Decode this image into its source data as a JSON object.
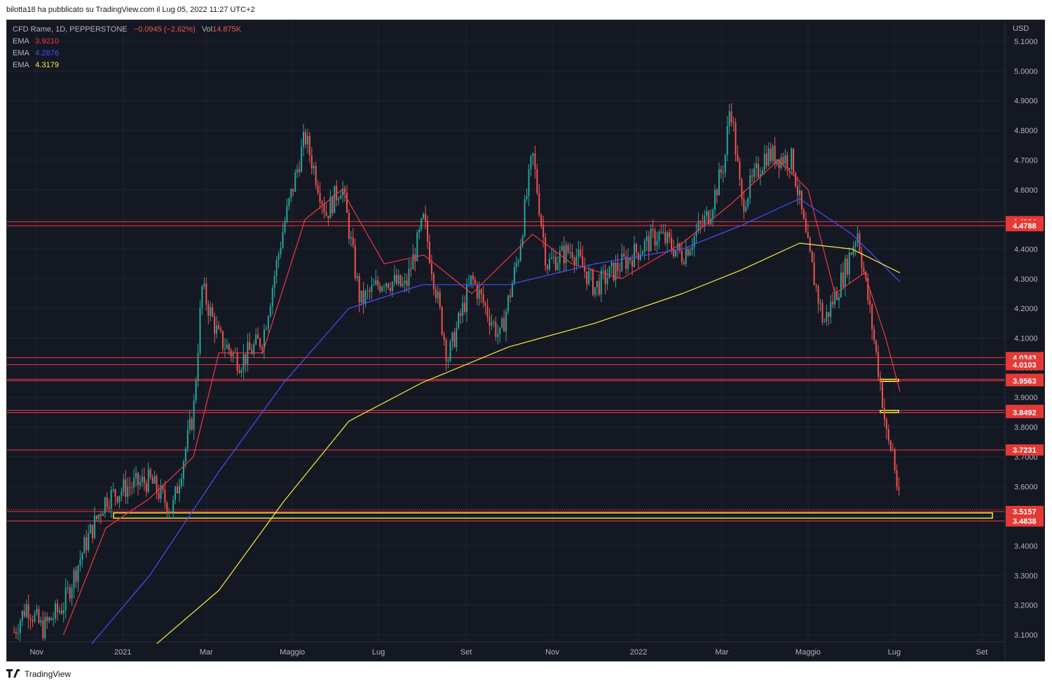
{
  "header": {
    "publish_line": "bilotta18 ha pubblicato su TradingView.com il Lug 05, 2022 11:27 UTC+2"
  },
  "legend": {
    "symbol": "CFD Rame, 1D, PEPPERSTONE",
    "change": "−0.0945 (−2.62%)",
    "vol_label": "Vol",
    "vol_value": "14.875K",
    "ema_rows": [
      {
        "label": "EMA",
        "value": "3.9210",
        "color": "#f23645"
      },
      {
        "label": "EMA",
        "value": "4.2876",
        "color": "#4a4fff"
      },
      {
        "label": "EMA",
        "value": "4.3179",
        "color": "#ffeb3b"
      }
    ]
  },
  "footer": {
    "brand": "TradingView",
    "logo_icon": "tradingview-logo-icon"
  },
  "colors": {
    "background": "#141823",
    "up": "#26a69a",
    "down": "#ef5350",
    "level_line": "#f23645",
    "zone": "#ffeb3b",
    "axis_text": "#b2b5be"
  },
  "chart_data": {
    "type": "candlestick",
    "title": "CFD Rame, 1D, PEPPERSTONE",
    "currency": "USD",
    "x_axis_labels": [
      "Nov",
      "2021",
      "Mar",
      "Maggio",
      "Lug",
      "Set",
      "Nov",
      "2022",
      "Mar",
      "Maggio",
      "Lug",
      "Set"
    ],
    "y_axis_ticks": [
      "5.1000",
      "5.0000",
      "4.9000",
      "4.8000",
      "4.7000",
      "4.6000",
      "4.5000",
      "4.4000",
      "4.3000",
      "4.2000",
      "4.1000",
      "4.0000",
      "3.9000",
      "3.8000",
      "3.7000",
      "3.6000",
      "3.5000",
      "3.4000",
      "3.3000",
      "3.2000",
      "3.1000"
    ],
    "ylim": [
      3.07,
      5.12
    ],
    "grid": true,
    "price_levels": [
      "4.4924",
      "4.4788",
      "4.0343",
      "4.0103",
      "3.9611",
      "3.9563",
      "3.8564",
      "3.8492",
      "3.7231",
      "3.5157",
      "3.4838"
    ],
    "last_price": 3.5157,
    "support_zone": [
      3.4838,
      3.5157
    ],
    "price_path": [
      {
        "t": "2020-10-15",
        "p": 3.1
      },
      {
        "t": "2020-10-25",
        "p": 3.2
      },
      {
        "t": "2020-11-05",
        "p": 3.12
      },
      {
        "t": "2020-11-20",
        "p": 3.2
      },
      {
        "t": "2020-12-05",
        "p": 3.4
      },
      {
        "t": "2020-12-20",
        "p": 3.56
      },
      {
        "t": "2021-01-05",
        "p": 3.6
      },
      {
        "t": "2021-01-20",
        "p": 3.62
      },
      {
        "t": "2021-02-05",
        "p": 3.52
      },
      {
        "t": "2021-02-20",
        "p": 3.85
      },
      {
        "t": "2021-02-26",
        "p": 4.27
      },
      {
        "t": "2021-03-10",
        "p": 4.1
      },
      {
        "t": "2021-03-25",
        "p": 4.02
      },
      {
        "t": "2021-04-10",
        "p": 4.1
      },
      {
        "t": "2021-04-25",
        "p": 4.48
      },
      {
        "t": "2021-05-10",
        "p": 4.78
      },
      {
        "t": "2021-05-25",
        "p": 4.52
      },
      {
        "t": "2021-06-05",
        "p": 4.62
      },
      {
        "t": "2021-06-18",
        "p": 4.22
      },
      {
        "t": "2021-07-05",
        "p": 4.3
      },
      {
        "t": "2021-07-20",
        "p": 4.27
      },
      {
        "t": "2021-08-02",
        "p": 4.5
      },
      {
        "t": "2021-08-19",
        "p": 4.03
      },
      {
        "t": "2021-09-05",
        "p": 4.3
      },
      {
        "t": "2021-09-25",
        "p": 4.1
      },
      {
        "t": "2021-10-08",
        "p": 4.38
      },
      {
        "t": "2021-10-18",
        "p": 4.72
      },
      {
        "t": "2021-10-28",
        "p": 4.35
      },
      {
        "t": "2021-11-15",
        "p": 4.4
      },
      {
        "t": "2021-12-01",
        "p": 4.27
      },
      {
        "t": "2021-12-20",
        "p": 4.35
      },
      {
        "t": "2022-01-15",
        "p": 4.45
      },
      {
        "t": "2022-02-01",
        "p": 4.38
      },
      {
        "t": "2022-02-20",
        "p": 4.52
      },
      {
        "t": "2022-03-03",
        "p": 4.7
      },
      {
        "t": "2022-03-07",
        "p": 4.9
      },
      {
        "t": "2022-03-15",
        "p": 4.55
      },
      {
        "t": "2022-04-01",
        "p": 4.72
      },
      {
        "t": "2022-04-20",
        "p": 4.7
      },
      {
        "t": "2022-04-30",
        "p": 4.42
      },
      {
        "t": "2022-05-12",
        "p": 4.15
      },
      {
        "t": "2022-05-25",
        "p": 4.3
      },
      {
        "t": "2022-06-05",
        "p": 4.46
      },
      {
        "t": "2022-06-15",
        "p": 4.15
      },
      {
        "t": "2022-06-22",
        "p": 3.92
      },
      {
        "t": "2022-06-26",
        "p": 3.75
      },
      {
        "t": "2022-06-30",
        "p": 3.72
      },
      {
        "t": "2022-07-05",
        "p": 3.52
      }
    ],
    "ema_fast": [
      {
        "t": "2020-11-20",
        "p": 3.1
      },
      {
        "t": "2020-12-20",
        "p": 3.46
      },
      {
        "t": "2021-01-20",
        "p": 3.56
      },
      {
        "t": "2021-02-20",
        "p": 3.7
      },
      {
        "t": "2021-03-10",
        "p": 4.05
      },
      {
        "t": "2021-04-10",
        "p": 4.05
      },
      {
        "t": "2021-05-10",
        "p": 4.5
      },
      {
        "t": "2021-06-05",
        "p": 4.6
      },
      {
        "t": "2021-07-05",
        "p": 4.35
      },
      {
        "t": "2021-08-02",
        "p": 4.38
      },
      {
        "t": "2021-09-05",
        "p": 4.25
      },
      {
        "t": "2021-10-18",
        "p": 4.45
      },
      {
        "t": "2021-11-15",
        "p": 4.35
      },
      {
        "t": "2021-12-20",
        "p": 4.3
      },
      {
        "t": "2022-02-01",
        "p": 4.42
      },
      {
        "t": "2022-03-07",
        "p": 4.55
      },
      {
        "t": "2022-04-10",
        "p": 4.7
      },
      {
        "t": "2022-05-01",
        "p": 4.6
      },
      {
        "t": "2022-05-20",
        "p": 4.25
      },
      {
        "t": "2022-06-10",
        "p": 4.32
      },
      {
        "t": "2022-06-25",
        "p": 4.1
      },
      {
        "t": "2022-07-05",
        "p": 3.92
      }
    ],
    "ema_mid": [
      {
        "t": "2020-12-10",
        "p": 3.07
      },
      {
        "t": "2021-01-20",
        "p": 3.3
      },
      {
        "t": "2021-03-10",
        "p": 3.65
      },
      {
        "t": "2021-04-25",
        "p": 3.95
      },
      {
        "t": "2021-06-10",
        "p": 4.2
      },
      {
        "t": "2021-08-01",
        "p": 4.28
      },
      {
        "t": "2021-10-01",
        "p": 4.28
      },
      {
        "t": "2021-12-01",
        "p": 4.35
      },
      {
        "t": "2022-02-01",
        "p": 4.4
      },
      {
        "t": "2022-03-15",
        "p": 4.48
      },
      {
        "t": "2022-04-25",
        "p": 4.57
      },
      {
        "t": "2022-06-01",
        "p": 4.45
      },
      {
        "t": "2022-07-05",
        "p": 4.29
      }
    ],
    "ema_slow": [
      {
        "t": "2021-01-25",
        "p": 3.07
      },
      {
        "t": "2021-03-10",
        "p": 3.25
      },
      {
        "t": "2021-04-25",
        "p": 3.55
      },
      {
        "t": "2021-06-10",
        "p": 3.82
      },
      {
        "t": "2021-08-01",
        "p": 3.95
      },
      {
        "t": "2021-10-01",
        "p": 4.07
      },
      {
        "t": "2021-12-01",
        "p": 4.15
      },
      {
        "t": "2022-02-01",
        "p": 4.25
      },
      {
        "t": "2022-03-15",
        "p": 4.33
      },
      {
        "t": "2022-04-25",
        "p": 4.42
      },
      {
        "t": "2022-06-01",
        "p": 4.4
      },
      {
        "t": "2022-07-05",
        "p": 4.32
      }
    ]
  }
}
